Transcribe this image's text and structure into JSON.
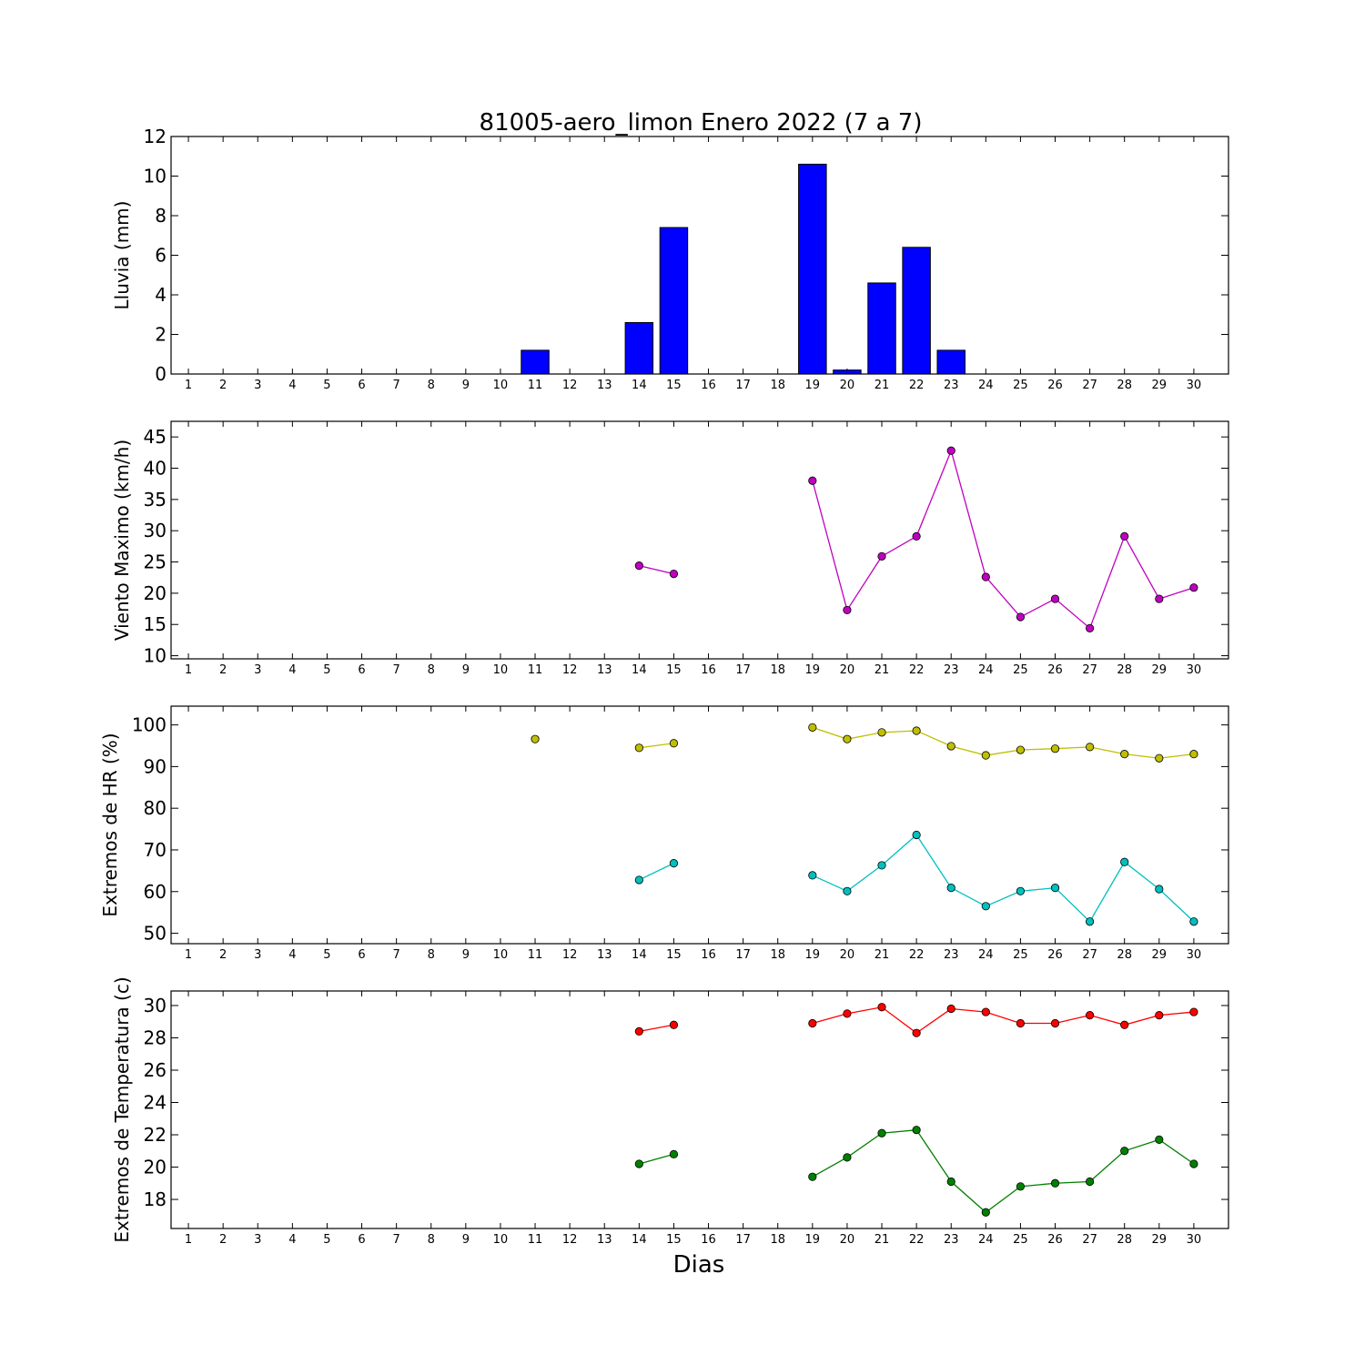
{
  "title": "81005-aero_limon Enero 2022  (7 a 7)",
  "chart_data": [
    {
      "type": "bar",
      "name": "rain",
      "title": "81005-aero_limon Enero 2022  (7 a 7)",
      "xlabel": "",
      "ylabel": "Lluvia (mm)",
      "categories": [
        1,
        2,
        3,
        4,
        5,
        6,
        7,
        8,
        9,
        10,
        11,
        12,
        13,
        14,
        15,
        16,
        17,
        18,
        19,
        20,
        21,
        22,
        23,
        24,
        25,
        26,
        27,
        28,
        29,
        30
      ],
      "values": [
        0,
        0,
        0,
        0,
        0,
        0,
        0,
        0,
        0,
        0,
        1.2,
        0,
        0,
        2.6,
        7.4,
        0,
        0,
        0,
        10.6,
        0.2,
        4.6,
        6.4,
        1.2,
        0,
        0,
        0,
        0,
        0,
        0,
        0
      ],
      "ylim": [
        0,
        12
      ],
      "yticks": [
        0,
        2,
        4,
        6,
        8,
        10,
        12
      ],
      "color": "#0000ff"
    },
    {
      "type": "line",
      "name": "wind",
      "xlabel": "",
      "ylabel": "Viento Maximo (km/h)",
      "x": [
        1,
        2,
        3,
        4,
        5,
        6,
        7,
        8,
        9,
        10,
        11,
        12,
        13,
        14,
        15,
        16,
        17,
        18,
        19,
        20,
        21,
        22,
        23,
        24,
        25,
        26,
        27,
        28,
        29,
        30
      ],
      "series": [
        {
          "color": "#bf00bf",
          "values": [
            null,
            null,
            null,
            null,
            null,
            null,
            null,
            null,
            null,
            null,
            null,
            null,
            null,
            24.4,
            23.1,
            null,
            null,
            null,
            38.0,
            17.3,
            25.9,
            29.1,
            42.8,
            22.6,
            16.2,
            19.1,
            14.4,
            29.1,
            19.1,
            20.9
          ]
        }
      ],
      "ylim": [
        9.5,
        47.5
      ],
      "yticks": [
        10,
        15,
        20,
        25,
        30,
        35,
        40,
        45
      ]
    },
    {
      "type": "line",
      "name": "humidity",
      "xlabel": "",
      "ylabel": "Extremos de HR (%)",
      "x": [
        1,
        2,
        3,
        4,
        5,
        6,
        7,
        8,
        9,
        10,
        11,
        12,
        13,
        14,
        15,
        16,
        17,
        18,
        19,
        20,
        21,
        22,
        23,
        24,
        25,
        26,
        27,
        28,
        29,
        30
      ],
      "series": [
        {
          "color": "#bfbf00",
          "values": [
            null,
            null,
            null,
            null,
            null,
            null,
            null,
            null,
            null,
            null,
            96.6,
            null,
            null,
            94.5,
            95.6,
            null,
            null,
            null,
            99.4,
            96.6,
            98.2,
            98.6,
            94.9,
            92.7,
            94.0,
            94.3,
            94.7,
            93.0,
            92.0,
            93.0
          ]
        },
        {
          "color": "#00bfbf",
          "values": [
            null,
            null,
            null,
            null,
            null,
            null,
            null,
            null,
            null,
            null,
            null,
            null,
            null,
            62.8,
            66.8,
            null,
            null,
            null,
            63.9,
            60.1,
            66.3,
            73.6,
            60.9,
            56.5,
            60.1,
            60.9,
            52.8,
            67.1,
            60.6,
            52.8
          ]
        }
      ],
      "ylim": [
        47.5,
        104.5
      ],
      "yticks": [
        50,
        60,
        70,
        80,
        90,
        100
      ]
    },
    {
      "type": "line",
      "name": "temperature",
      "xlabel": "Dias",
      "ylabel": "Extremos de Temperatura (c)",
      "x": [
        1,
        2,
        3,
        4,
        5,
        6,
        7,
        8,
        9,
        10,
        11,
        12,
        13,
        14,
        15,
        16,
        17,
        18,
        19,
        20,
        21,
        22,
        23,
        24,
        25,
        26,
        27,
        28,
        29,
        30
      ],
      "series": [
        {
          "color": "#ff0000",
          "values": [
            null,
            null,
            null,
            null,
            null,
            null,
            null,
            null,
            null,
            null,
            null,
            null,
            null,
            28.4,
            28.8,
            null,
            null,
            null,
            28.9,
            29.5,
            29.9,
            28.3,
            29.8,
            29.6,
            28.9,
            28.9,
            29.4,
            28.8,
            29.4,
            29.6
          ]
        },
        {
          "color": "#008000",
          "values": [
            null,
            null,
            null,
            null,
            null,
            null,
            null,
            null,
            null,
            null,
            null,
            null,
            null,
            20.2,
            20.8,
            null,
            null,
            null,
            19.4,
            20.6,
            22.1,
            22.3,
            19.1,
            17.2,
            18.8,
            19.0,
            19.1,
            21.0,
            21.7,
            20.2
          ]
        }
      ],
      "ylim": [
        16.2,
        30.9
      ],
      "yticks": [
        18,
        20,
        22,
        24,
        26,
        28,
        30
      ]
    }
  ]
}
